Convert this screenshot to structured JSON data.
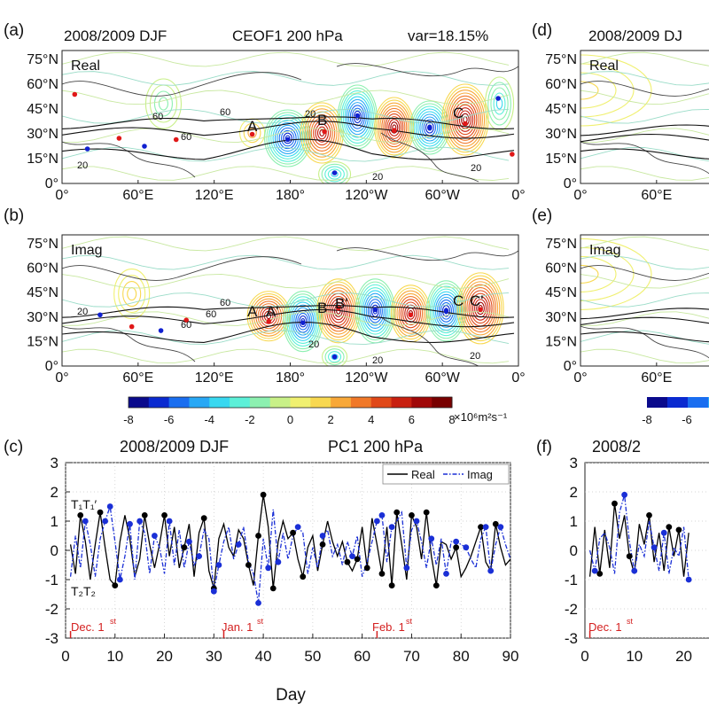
{
  "panels": {
    "a": {
      "tag": "(a)",
      "season": "2008/2009 DJF",
      "title": "CEOF1 200 hPa",
      "var": "var=18.15%",
      "mode": "Real"
    },
    "b": {
      "tag": "(b)",
      "mode": "Imag"
    },
    "c": {
      "tag": "(c)",
      "title_left": "2008/2009 DJF",
      "title_right": "PC1 200 hPa"
    },
    "d": {
      "tag": "(d)",
      "title": "2008/2009 DJ",
      "mode": "Real"
    },
    "e": {
      "tag": "(e)",
      "mode": "Imag"
    },
    "f": {
      "tag": "(f)",
      "title": "2008/2"
    }
  },
  "map_axes": {
    "lat_ticks": [
      "75°N",
      "60°N",
      "45°N",
      "30°N",
      "15°N",
      "0°"
    ],
    "lon_ticks": [
      "0°",
      "60°E",
      "120°E",
      "180°",
      "120°W",
      "60°W",
      "0°"
    ],
    "lon_ticks_right": [
      "0°",
      "60°E"
    ],
    "contour_labels": [
      "20",
      "60"
    ]
  },
  "map_labels_a": [
    "A",
    "B",
    "C"
  ],
  "map_labels_b": [
    "A",
    "A'",
    "B",
    "B'",
    "C",
    "C'"
  ],
  "colorbar": {
    "ticks": [
      "-8",
      "-6",
      "-4",
      "-2",
      "0",
      "2",
      "4",
      "6",
      "8"
    ],
    "unit": "×10⁶m²s⁻¹",
    "colors": [
      "#0a0a8c",
      "#0a2ad0",
      "#1a6ef0",
      "#28a8f5",
      "#38d8f0",
      "#5cf0d8",
      "#8cf0b0",
      "#c8f088",
      "#f0f070",
      "#f8d850",
      "#f8a838",
      "#f07828",
      "#e04818",
      "#c82010",
      "#a00808",
      "#780000"
    ],
    "right_ticks": [
      "-8",
      "-6"
    ]
  },
  "annotations": {
    "t1": "T₁T₁′",
    "t2": "T₂T₂",
    "dec": "Dec. 1",
    "jan": "Jan. 1",
    "feb": "Feb. 1",
    "sup": "st"
  },
  "chart_data": {
    "type": "line",
    "title": "2008/2009 DJF PC1 200 hPa",
    "xlabel": "Day",
    "ylabel": "",
    "xlim": [
      0,
      90
    ],
    "ylim": [
      -3,
      3
    ],
    "xticks": [
      0,
      10,
      20,
      30,
      40,
      50,
      60,
      70,
      80,
      90
    ],
    "yticks": [
      -3,
      -2,
      -1,
      0,
      1,
      2,
      3
    ],
    "legend_position": "top-right",
    "series": [
      {
        "name": "Real",
        "color": "#000000",
        "style": "solid",
        "x": [
          1,
          2,
          3,
          4,
          5,
          6,
          7,
          8,
          9,
          10,
          11,
          12,
          13,
          14,
          15,
          16,
          17,
          18,
          19,
          20,
          21,
          22,
          23,
          24,
          25,
          26,
          27,
          28,
          29,
          30,
          31,
          32,
          33,
          34,
          35,
          36,
          37,
          38,
          39,
          40,
          41,
          42,
          43,
          44,
          45,
          46,
          47,
          48,
          49,
          50,
          51,
          52,
          53,
          54,
          55,
          56,
          57,
          58,
          59,
          60,
          61,
          62,
          63,
          64,
          65,
          66,
          67,
          68,
          69,
          70,
          71,
          72,
          73,
          74,
          75,
          76,
          77,
          78,
          79,
          80,
          81,
          82,
          83,
          84,
          85,
          86,
          87,
          88,
          89,
          90
        ],
        "values": [
          0.2,
          -0.8,
          1.2,
          0.3,
          -1.0,
          0.2,
          1.3,
          0.1,
          -1.0,
          -1.2,
          0.3,
          1.2,
          0.4,
          -0.9,
          -0.3,
          1.2,
          0.2,
          -0.6,
          0.2,
          1.2,
          -0.2,
          0.8,
          -0.6,
          0.1,
          0.9,
          -0.9,
          0.6,
          1.1,
          -0.7,
          -1.3,
          0.4,
          0.9,
          0.1,
          -0.2,
          0.7,
          0.4,
          -0.5,
          -1.2,
          0.5,
          1.9,
          0.8,
          -1.3,
          0.3,
          1.0,
          0.4,
          0.6,
          -0.3,
          -0.9,
          0.1,
          0.5,
          -0.7,
          0.2,
          1.0,
          0.3,
          -0.2,
          0.3,
          -0.4,
          -0.7,
          -0.3,
          0.8,
          -0.6,
          1.1,
          0.2,
          -0.8,
          0.8,
          -1.2,
          1.3,
          0.2,
          -1.0,
          1.2,
          0.8,
          -0.3,
          1.3,
          -0.2,
          -1.2,
          0.3,
          0.2,
          -0.3,
          0.1,
          -0.9,
          -0.6,
          -0.2,
          0.3,
          0.8,
          -0.4,
          -0.7,
          0.9,
          0.1,
          -0.5,
          -0.3
        ]
      },
      {
        "name": "Imag",
        "color": "#1a2fd6",
        "style": "dash-dot",
        "x": [
          1,
          2,
          3,
          4,
          5,
          6,
          7,
          8,
          9,
          10,
          11,
          12,
          13,
          14,
          15,
          16,
          17,
          18,
          19,
          20,
          21,
          22,
          23,
          24,
          25,
          26,
          27,
          28,
          29,
          30,
          31,
          32,
          33,
          34,
          35,
          36,
          37,
          38,
          39,
          40,
          41,
          42,
          43,
          44,
          45,
          46,
          47,
          48,
          49,
          50,
          51,
          52,
          53,
          54,
          55,
          56,
          57,
          58,
          59,
          60,
          61,
          62,
          63,
          64,
          65,
          66,
          67,
          68,
          69,
          70,
          71,
          72,
          73,
          74,
          75,
          76,
          77,
          78,
          79,
          80,
          81,
          82,
          83,
          84,
          85,
          86,
          87,
          88,
          89,
          90
        ],
        "values": [
          -0.9,
          0.5,
          -0.6,
          1.0,
          0.2,
          -0.9,
          0.4,
          1.0,
          1.5,
          0.3,
          -1.0,
          -0.2,
          0.9,
          -1.0,
          1.0,
          0.6,
          -0.8,
          0.5,
          0.1,
          -0.8,
          1.0,
          -0.5,
          0.7,
          -0.6,
          0.3,
          -0.5,
          -0.2,
          0.7,
          0.4,
          -1.4,
          -0.5,
          0.3,
          0.8,
          -0.3,
          0.2,
          0.8,
          -0.4,
          -0.8,
          -1.8,
          0.4,
          -0.6,
          1.4,
          -0.4,
          0.6,
          -0.3,
          0.5,
          0.8,
          0.6,
          -0.8,
          0.1,
          -0.6,
          0.5,
          0.7,
          -0.2,
          0.2,
          -0.5,
          0.3,
          -0.2,
          0.5,
          -0.9,
          -0.4,
          0.3,
          1.0,
          1.2,
          -0.4,
          0.8,
          1.0,
          1.3,
          -0.6,
          0.7,
          1.0,
          0.3,
          -0.6,
          0.4,
          -0.5,
          0.4,
          -0.8,
          0.3,
          0.3,
          0.2,
          0.1,
          -0.3,
          -0.6,
          0.4,
          0.8,
          -0.7,
          0.2,
          0.8,
          0.2,
          -0.3
        ]
      }
    ],
    "real_dots_x": [
      3,
      7,
      10,
      16,
      20,
      24,
      28,
      30,
      37,
      39,
      40,
      42,
      46,
      48,
      52,
      57,
      59,
      61,
      64,
      66,
      67,
      70,
      73,
      75,
      79,
      84,
      87
    ],
    "imag_dots_x": [
      4,
      8,
      9,
      11,
      13,
      15,
      18,
      21,
      25,
      27,
      30,
      31,
      35,
      39,
      41,
      43,
      47,
      52,
      58,
      63,
      64,
      66,
      69,
      71,
      74,
      77,
      79,
      81,
      85,
      86,
      88
    ]
  },
  "right_chart": {
    "yticks": [
      -3,
      -2,
      -1,
      0,
      1,
      2,
      3
    ],
    "xticks": [
      0,
      10,
      20
    ],
    "real": [
      -0.9,
      0.8,
      -0.8,
      0.7,
      -0.6,
      1.6,
      0.4,
      1.2,
      -0.2,
      -0.8,
      0.9,
      0.2,
      1.2,
      -0.4,
      0.6,
      -0.7,
      0.8,
      -0.2,
      0.7,
      -0.9,
      0.6
    ],
    "imag": [
      0.0,
      -0.7,
      0.4,
      0.6,
      0.1,
      -0.8,
      1.3,
      1.9,
      0.3,
      -0.7,
      0.2,
      -0.2,
      1.0,
      0.1,
      -0.7,
      0.6,
      -0.8,
      0.1,
      -0.2,
      0.8,
      -1.0
    ]
  }
}
